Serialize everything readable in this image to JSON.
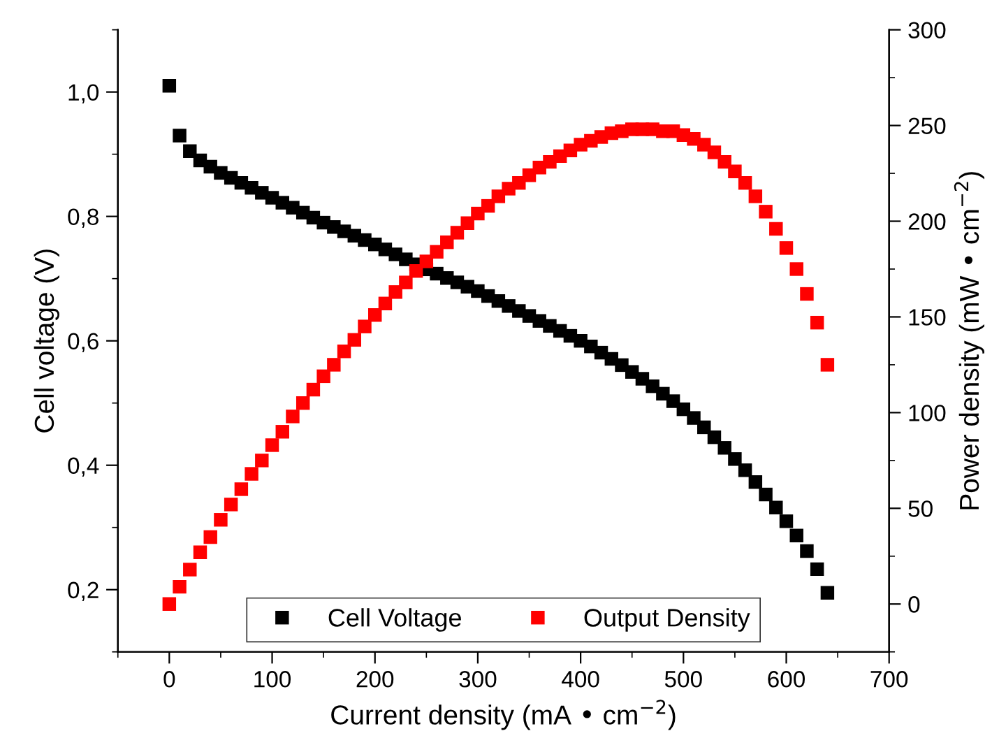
{
  "chart_data": {
    "type": "scatter",
    "xlabel": "Current density (mA • cm$^{−2}$)",
    "ylabel": "Cell voltage (V)",
    "y2label": "Power density (mW • cm$^{−2}$)",
    "x": [
      0,
      10,
      20,
      30,
      40,
      50,
      60,
      70,
      80,
      90,
      100,
      110,
      120,
      130,
      140,
      150,
      160,
      170,
      180,
      190,
      200,
      210,
      220,
      230,
      240,
      250,
      260,
      270,
      280,
      290,
      300,
      310,
      320,
      330,
      340,
      350,
      360,
      370,
      380,
      390,
      400,
      410,
      420,
      430,
      440,
      450,
      460,
      470,
      480,
      490,
      500,
      510,
      520,
      530,
      540,
      550,
      560,
      570,
      580,
      590,
      600,
      610,
      620,
      630,
      640
    ],
    "series": [
      {
        "name": "Cell Voltage",
        "color": "#000000",
        "values": [
          1.01,
          0.93,
          0.905,
          0.89,
          0.88,
          0.87,
          0.862,
          0.854,
          0.846,
          0.838,
          0.83,
          0.822,
          0.814,
          0.806,
          0.798,
          0.79,
          0.783,
          0.776,
          0.769,
          0.762,
          0.755,
          0.747,
          0.739,
          0.731,
          0.723,
          0.715,
          0.708,
          0.701,
          0.694,
          0.687,
          0.68,
          0.672,
          0.664,
          0.656,
          0.648,
          0.64,
          0.632,
          0.624,
          0.616,
          0.608,
          0.6,
          0.591,
          0.581,
          0.571,
          0.561,
          0.55,
          0.539,
          0.527,
          0.515,
          0.503,
          0.49,
          0.476,
          0.461,
          0.445,
          0.428,
          0.41,
          0.392,
          0.373,
          0.353,
          0.332,
          0.31,
          0.287,
          0.262,
          0.233,
          0.195
        ]
      },
      {
        "name": "Output Density",
        "color": "#ff0000",
        "axis": "y2",
        "values": [
          0,
          9,
          18,
          27,
          35,
          44,
          52,
          60,
          68,
          75,
          83,
          90,
          98,
          105,
          112,
          119,
          125,
          132,
          138,
          145,
          151,
          157,
          163,
          168,
          174,
          179,
          184,
          189,
          194,
          199,
          204,
          208,
          213,
          217,
          220,
          224,
          228,
          231,
          234,
          237,
          240,
          242,
          244,
          246,
          247,
          248,
          248,
          248,
          247,
          247,
          245,
          243,
          240,
          236,
          231,
          226,
          220,
          213,
          205,
          196,
          186,
          175,
          162,
          147,
          125
        ]
      }
    ],
    "xlim": [
      -50,
      700
    ],
    "xticks": [
      0,
      100,
      200,
      300,
      400,
      500,
      600,
      700
    ],
    "ylim": [
      0.1,
      1.1
    ],
    "yticks": [
      {
        "value": 0.2,
        "label": "0,2"
      },
      {
        "value": 0.4,
        "label": "0,4"
      },
      {
        "value": 0.6,
        "label": "0,6"
      },
      {
        "value": 0.8,
        "label": "0,8"
      },
      {
        "value": 1.0,
        "label": "1,0"
      }
    ],
    "y2lim": [
      -25,
      300
    ],
    "y2ticks": [
      0,
      50,
      100,
      150,
      200,
      250,
      300
    ],
    "marker": "square",
    "grid": false,
    "legend": "bottom"
  }
}
